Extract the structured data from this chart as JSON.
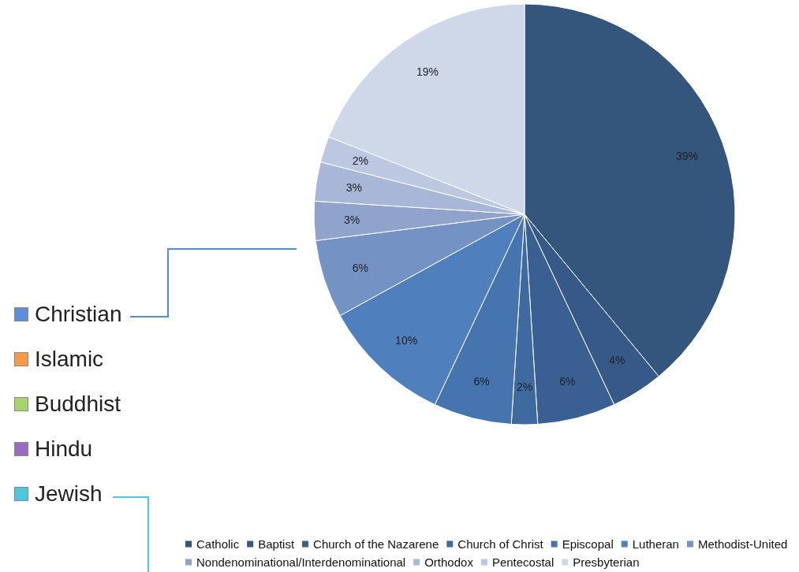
{
  "chart_data": {
    "type": "pie",
    "categories": [
      "Catholic",
      "Baptist",
      "Church of the Nazarene",
      "Church of Christ",
      "Episcopal",
      "Lutheran",
      "Methodist-United",
      "Nondenominational/Interdenominational",
      "Orthodox",
      "Pentecostal",
      "Presbyterian"
    ],
    "values": [
      39,
      4,
      6,
      2,
      6,
      10,
      6,
      3,
      3,
      2,
      19
    ],
    "value_labels": [
      "39%",
      "4%",
      "6%",
      "2%",
      "6%",
      "10%",
      "6%",
      "3%",
      "3%",
      "2%",
      "19%"
    ],
    "colors": [
      "#34557c",
      "#37598a",
      "#3a5f92",
      "#3e6aa0",
      "#4574ae",
      "#4f80bd",
      "#7592c4",
      "#8fa3cd",
      "#a8b7d8",
      "#bcc8e1",
      "#cfd8e8"
    ],
    "legend": "bottom",
    "annotations": [
      "Christian",
      "Islamic",
      "Buddhist",
      "Hindu",
      "Jewish"
    ]
  }
}
